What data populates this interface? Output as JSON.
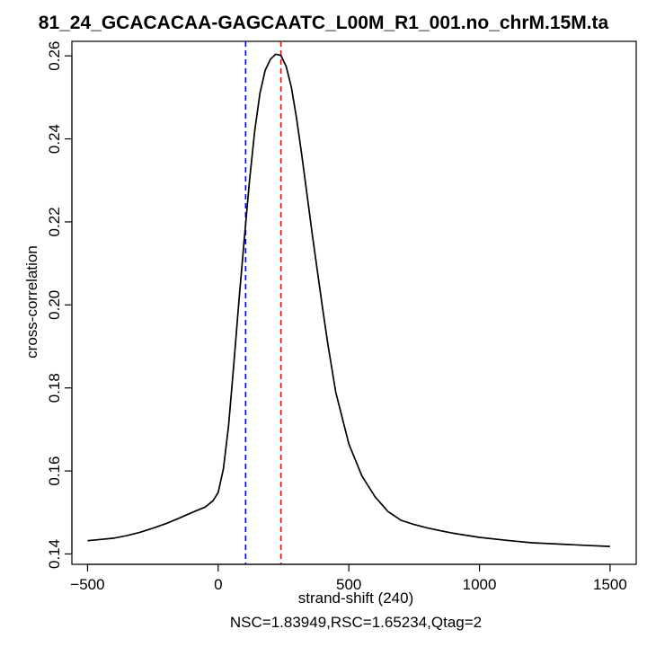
{
  "chart_data": {
    "type": "line",
    "title": "81_24_GCACACAA-GAGCAATC_L00M_R1_001.no_chrM.15M.ta",
    "xlabel": "strand-shift (240)",
    "ylabel": "cross-correlation",
    "subtitle": "NSC=1.83949,RSC=1.65234,Qtag=2",
    "xlim": [
      -560,
      1600
    ],
    "ylim": [
      0.1375,
      0.2635
    ],
    "xticks": [
      -500,
      0,
      500,
      1000,
      1500
    ],
    "xtick_labels": [
      "−500",
      "0",
      "500",
      "1000",
      "1500"
    ],
    "yticks": [
      0.14,
      0.16,
      0.18,
      0.2,
      0.22,
      0.24,
      0.26
    ],
    "ytick_labels": [
      "0.14",
      "0.16",
      "0.18",
      "0.20",
      "0.22",
      "0.24",
      "0.26"
    ],
    "grid": false,
    "series": [
      {
        "color": "#000000",
        "x": [
          -500,
          -450,
          -400,
          -350,
          -300,
          -250,
          -200,
          -150,
          -100,
          -50,
          -20,
          0,
          20,
          40,
          60,
          80,
          100,
          120,
          140,
          160,
          180,
          200,
          220,
          240,
          260,
          280,
          300,
          320,
          340,
          360,
          380,
          400,
          420,
          450,
          500,
          550,
          600,
          650,
          700,
          750,
          800,
          850,
          900,
          1000,
          1100,
          1200,
          1300,
          1400,
          1500
        ],
        "y": [
          0.1432,
          0.1435,
          0.1438,
          0.1444,
          0.1452,
          0.1462,
          0.1473,
          0.1486,
          0.15,
          0.1513,
          0.1528,
          0.1548,
          0.1605,
          0.171,
          0.186,
          0.2015,
          0.216,
          0.23,
          0.242,
          0.251,
          0.2565,
          0.2592,
          0.2604,
          0.2601,
          0.2575,
          0.2525,
          0.245,
          0.236,
          0.2265,
          0.217,
          0.208,
          0.199,
          0.1905,
          0.179,
          0.1665,
          0.1588,
          0.1538,
          0.1502,
          0.1481,
          0.1471,
          0.1463,
          0.1456,
          0.145,
          0.144,
          0.1433,
          0.1427,
          0.1424,
          0.1421,
          0.1418
        ]
      }
    ],
    "vlines": [
      {
        "x": 105,
        "color": "#0000ff",
        "style": "dashed"
      },
      {
        "x": 240,
        "color": "#ff0000",
        "style": "dashed"
      }
    ]
  }
}
